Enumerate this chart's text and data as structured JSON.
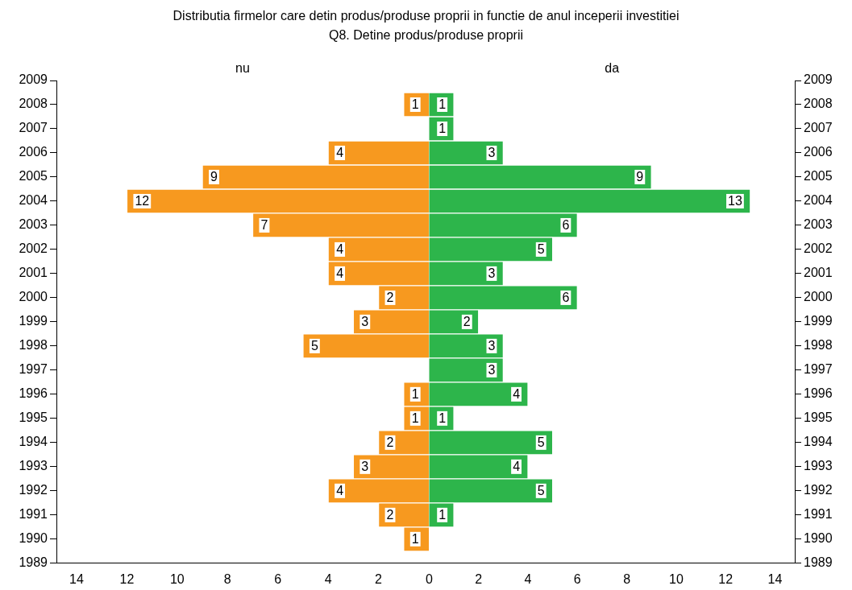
{
  "chart_data": [
    {
      "type": "bar",
      "orientation": "horizontal",
      "title": "Distributia firmelor care detin produs/produse proprii in functie de anul inceperii investitiei",
      "subtitle": "Q8. Detine produs/produse proprii",
      "categories": [
        "2009",
        "2008",
        "2007",
        "2006",
        "2005",
        "2004",
        "2003",
        "2002",
        "2001",
        "2000",
        "1999",
        "1998",
        "1997",
        "1996",
        "1995",
        "1994",
        "1993",
        "1992",
        "1991",
        "1990",
        "1989"
      ],
      "series": [
        {
          "name": "nu",
          "color": "#f7991f",
          "values": [
            null,
            1,
            null,
            4,
            9,
            12,
            7,
            4,
            4,
            2,
            3,
            5,
            null,
            1,
            1,
            2,
            3,
            4,
            2,
            1,
            null
          ]
        }
      ],
      "xlim": [
        14.8,
        0
      ],
      "xticks": [
        2,
        4,
        6,
        8,
        10,
        12,
        14
      ],
      "data_labels": true
    },
    {
      "type": "bar",
      "orientation": "horizontal",
      "categories": [
        "2009",
        "2008",
        "2007",
        "2006",
        "2005",
        "2004",
        "2003",
        "2002",
        "2001",
        "2000",
        "1999",
        "1998",
        "1997",
        "1996",
        "1995",
        "1994",
        "1993",
        "1992",
        "1991",
        "1990",
        "1989"
      ],
      "series": [
        {
          "name": "da",
          "color": "#2db54b",
          "values": [
            null,
            1,
            1,
            3,
            9,
            13,
            6,
            5,
            3,
            6,
            2,
            3,
            3,
            4,
            1,
            5,
            4,
            5,
            1,
            null,
            null
          ]
        }
      ],
      "xlim": [
        0,
        14.8
      ],
      "xticks": [
        0,
        2,
        4,
        6,
        8,
        10,
        12,
        14
      ],
      "data_labels": true
    }
  ]
}
